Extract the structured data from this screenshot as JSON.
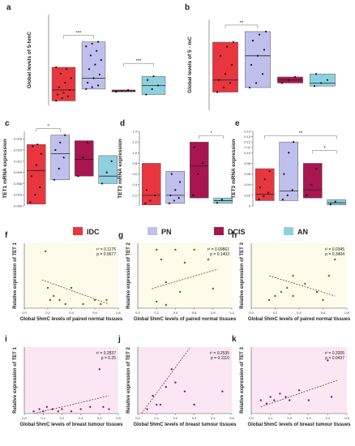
{
  "chart_data": [
    {
      "id": "a",
      "type": "box",
      "panel_letter": "a",
      "ylabel": "Global levels of 5-hmC",
      "ylim": [
        0,
        1
      ],
      "groups": [
        {
          "name": "IDC",
          "color": "#e8363f",
          "q1": 0.05,
          "median": 0.17,
          "q3": 0.42,
          "points": [
            0.05,
            0.08,
            0.1,
            0.12,
            0.14,
            0.17,
            0.2,
            0.25,
            0.3,
            0.35,
            0.4,
            0.42
          ]
        },
        {
          "name": "PN",
          "color": "#c0c0ee",
          "q1": 0.18,
          "median": 0.3,
          "q3": 0.7,
          "points": [
            0.18,
            0.2,
            0.22,
            0.25,
            0.3,
            0.34,
            0.4,
            0.45,
            0.5,
            0.55,
            0.6,
            0.65,
            0.68,
            0.7
          ]
        },
        {
          "name": "DCIS",
          "color": "#a8164f",
          "q1": 0.15,
          "median": 0.16,
          "q3": 0.17,
          "points": [
            0.15,
            0.16,
            0.17
          ]
        },
        {
          "name": "AN",
          "color": "#8fd0df",
          "q1": 0.12,
          "median": 0.22,
          "q3": 0.32,
          "points": [
            0.12,
            0.18,
            0.22,
            0.28,
            0.32
          ]
        }
      ],
      "brackets": [
        {
          "from": 0,
          "to": 1,
          "label": "***"
        },
        {
          "from": 2,
          "to": 3,
          "label": "***"
        }
      ]
    },
    {
      "id": "b",
      "type": "box",
      "panel_letter": "b",
      "ylabel": "Global levels of 5 - mC",
      "ylim": [
        0,
        6
      ],
      "groups": [
        {
          "name": "IDC",
          "color": "#e8363f",
          "q1": 1.2,
          "median": 2.0,
          "q3": 4.5,
          "points": [
            1.2,
            1.5,
            1.8,
            2.0,
            2.4,
            3.0,
            3.6,
            4.2,
            4.5
          ]
        },
        {
          "name": "PN",
          "color": "#c0c0ee",
          "q1": 1.5,
          "median": 3.6,
          "q3": 5.2,
          "points": [
            1.5,
            1.8,
            2.4,
            3.0,
            3.6,
            4.0,
            4.6,
            5.0,
            5.2
          ]
        },
        {
          "name": "DCIS",
          "color": "#a8164f",
          "q1": 1.8,
          "median": 2.0,
          "q3": 2.2,
          "points": [
            1.8,
            2.0,
            2.2
          ]
        },
        {
          "name": "AN",
          "color": "#8fd0df",
          "q1": 1.6,
          "median": 1.8,
          "q3": 2.4,
          "points": [
            1.6,
            1.8,
            2.0,
            2.4
          ]
        }
      ],
      "brackets": [
        {
          "from": 0,
          "to": 1,
          "label": "**"
        }
      ]
    },
    {
      "id": "c",
      "type": "box",
      "panel_letter": "c",
      "ylabel": "TET1 mRNA expression",
      "ylim": [
        0,
        0.02
      ],
      "yticks": [
        0.0,
        0.003,
        0.006,
        0.009,
        0.012,
        0.015,
        0.018,
        0.021
      ],
      "ytick_labels": [
        "0.000",
        "0.003",
        "0.006",
        "0.009",
        "0.012",
        "0.015",
        "0.018",
        "0.021"
      ],
      "groups": [
        {
          "name": "IDC",
          "color": "#e8363f",
          "q1": 0.0005,
          "median": 0.0095,
          "q3": 0.0165,
          "points": [
            0.001,
            0.003,
            0.005,
            0.008,
            0.011,
            0.014,
            0.016,
            0.0165
          ]
        },
        {
          "name": "PN",
          "color": "#c0c0ee",
          "q1": 0.007,
          "median": 0.014,
          "q3": 0.019,
          "points": [
            0.007,
            0.01,
            0.013,
            0.015,
            0.017,
            0.019
          ]
        },
        {
          "name": "DCIS",
          "color": "#a8164f",
          "q1": 0.008,
          "median": 0.0125,
          "q3": 0.0175,
          "points": [
            0.008,
            0.013,
            0.017
          ]
        },
        {
          "name": "AN",
          "color": "#8fd0df",
          "q1": 0.006,
          "median": 0.008,
          "q3": 0.0135,
          "points": [
            0.006,
            0.009,
            0.012
          ]
        }
      ],
      "brackets": [
        {
          "from": 0,
          "to": 1,
          "label": "*"
        }
      ]
    },
    {
      "id": "d",
      "type": "box",
      "panel_letter": "d",
      "ylabel": "TET2 mRNA expression",
      "ylim": [
        0,
        1.4
      ],
      "yticks": [
        0.2,
        0.4,
        0.6,
        0.8,
        1.0,
        1.2,
        1.4
      ],
      "ytick_labels": [
        "0.2",
        "0.4",
        "0.6",
        "0.8",
        "1.0",
        "1.2",
        "1.4"
      ],
      "groups": [
        {
          "name": "IDC",
          "color": "#e8363f",
          "q1": 0.02,
          "median": 0.2,
          "q3": 0.8,
          "points": [
            0.05,
            0.1,
            0.2,
            0.3
          ]
        },
        {
          "name": "PN",
          "color": "#c0c0ee",
          "q1": 0.05,
          "median": 0.2,
          "q3": 0.65,
          "points": [
            0.05,
            0.1,
            0.15,
            0.2,
            0.3,
            0.45,
            0.6
          ]
        },
        {
          "name": "DCIS",
          "color": "#a8164f",
          "q1": 0.15,
          "median": 0.75,
          "q3": 1.2,
          "points": [
            0.2,
            0.6,
            0.8,
            1.1
          ]
        },
        {
          "name": "AN",
          "color": "#8fd0df",
          "q1": 0.05,
          "median": 0.1,
          "q3": 0.15,
          "points": [
            0.06,
            0.12
          ]
        }
      ],
      "brackets": [
        {
          "from": 2,
          "to": 3,
          "label": "*"
        }
      ]
    },
    {
      "id": "e",
      "type": "box",
      "panel_letter": "e",
      "ylabel": "TET3 mRNA expression",
      "ylim": [
        0,
        0.14
      ],
      "yticks": [
        0.0,
        0.02,
        0.04,
        0.06,
        0.08,
        0.1,
        0.11,
        0.12,
        0.13,
        0.14
      ],
      "ytick_labels": [
        "0",
        "0.02",
        "0.04",
        "0.06",
        "0.08",
        "0.10",
        "0.11",
        "0.12",
        "0.13",
        "0.14"
      ],
      "groups": [
        {
          "name": "IDC",
          "color": "#e8363f",
          "q1": 0.01,
          "median": 0.022,
          "q3": 0.07,
          "points": [
            0.012,
            0.018,
            0.025,
            0.035,
            0.05,
            0.065
          ]
        },
        {
          "name": "PN",
          "color": "#c0c0ee",
          "q1": 0.01,
          "median": 0.028,
          "q3": 0.12,
          "points": [
            0.012,
            0.02,
            0.03,
            0.06,
            0.1,
            0.12
          ]
        },
        {
          "name": "DCIS",
          "color": "#a8164f",
          "q1": 0.015,
          "median": 0.03,
          "q3": 0.08,
          "points": [
            0.02,
            0.04,
            0.07
          ]
        },
        {
          "name": "AN",
          "color": "#8fd0df",
          "q1": 0.002,
          "median": 0.006,
          "q3": 0.012,
          "points": [
            0.003,
            0.008
          ]
        }
      ],
      "brackets": [
        {
          "from": 0,
          "to": 3,
          "label": "**"
        },
        {
          "from": 2,
          "to": 3,
          "label": "*"
        }
      ]
    },
    {
      "id": "f",
      "type": "scatter",
      "panel_letter": "f",
      "xlabel": "Global 5hmC levels of paired normal tissues",
      "ylabel": "Relative expression of TET 1",
      "bg": "#fdfbe9",
      "xlim": [
        0,
        0.8
      ],
      "ylim": [
        0,
        0.16
      ],
      "xticks": [
        0.0,
        0.2,
        0.4,
        0.6,
        0.8
      ],
      "xtick_labels": [
        "0.0",
        "0.2",
        "0.4",
        "0.6",
        "0.8"
      ],
      "points": [
        [
          0.18,
          0.14
        ],
        [
          0.2,
          0.05
        ],
        [
          0.22,
          0.02
        ],
        [
          0.25,
          0.03
        ],
        [
          0.3,
          0.02
        ],
        [
          0.35,
          0.01
        ],
        [
          0.4,
          0.05
        ],
        [
          0.5,
          0.01
        ],
        [
          0.6,
          0.02
        ],
        [
          0.65,
          0.01
        ],
        [
          0.7,
          0.02
        ]
      ],
      "trend": [
        [
          0.15,
          0.07
        ],
        [
          0.72,
          0.01
        ]
      ],
      "stat_r2": "r² = 0.1176",
      "stat_p": "p = 0.9677"
    },
    {
      "id": "g",
      "type": "scatter",
      "panel_letter": "g",
      "xlabel": "Global 5hmC levels of paired normal tissues",
      "ylabel": "Relative expression of TET 2",
      "bg": "#fdfbe9",
      "xlim": [
        0,
        1
      ],
      "ylim": [
        0,
        0.2
      ],
      "xticks": [
        0.0,
        0.2,
        0.4,
        0.6,
        0.8,
        1.0
      ],
      "xtick_labels": [
        "0.0",
        "0.2",
        "0.4",
        "0.6",
        "0.8",
        "1.0"
      ],
      "points": [
        [
          0.2,
          0.18
        ],
        [
          0.25,
          0.15
        ],
        [
          0.3,
          0.08
        ],
        [
          0.4,
          0.18
        ],
        [
          0.5,
          0.14
        ],
        [
          0.6,
          0.18
        ],
        [
          0.75,
          0.15
        ],
        [
          0.2,
          0.02
        ],
        [
          0.3,
          0.01
        ],
        [
          0.45,
          0.05
        ],
        [
          0.8,
          0.06
        ]
      ],
      "trend": [
        [
          0.15,
          0.06
        ],
        [
          0.85,
          0.12
        ]
      ],
      "stat_r2": "r² = 0.09861",
      "stat_p": "p = 0.1402"
    },
    {
      "id": "h",
      "type": "scatter",
      "panel_letter": "h",
      "xlabel": "Global 5hmC levels of paired normal tissues",
      "ylabel": "Relative expression of TET 3",
      "bg": "#fdfbe9",
      "xlim": [
        0,
        0.8
      ],
      "ylim": [
        0,
        0.16
      ],
      "xticks": [
        0.0,
        0.2,
        0.4,
        0.6,
        0.8
      ],
      "xtick_labels": [
        "0.0",
        "0.2",
        "0.4",
        "0.6",
        "0.8"
      ],
      "points": [
        [
          0.15,
          0.02
        ],
        [
          0.2,
          0.03
        ],
        [
          0.25,
          0.04
        ],
        [
          0.3,
          0.05
        ],
        [
          0.35,
          0.03
        ],
        [
          0.45,
          0.06
        ],
        [
          0.55,
          0.04
        ],
        [
          0.6,
          0.02
        ],
        [
          0.65,
          0.08
        ],
        [
          0.7,
          0.12
        ],
        [
          0.35,
          0.08
        ]
      ],
      "trend": [
        [
          0.15,
          0.08
        ],
        [
          0.7,
          0.03
        ]
      ],
      "stat_r2": "r² = 0.0345",
      "stat_p": "p = 0.3404"
    },
    {
      "id": "i",
      "type": "scatter",
      "panel_letter": "i",
      "xlabel": "Global 5hmC levels of breast tumour tissues",
      "ylabel": "Relative expression of TET 1",
      "bg": "#fbe6f3",
      "xlim": [
        0,
        0.5
      ],
      "ylim": [
        0,
        0.3
      ],
      "xticks": [
        0.0,
        0.1,
        0.2,
        0.3,
        0.4,
        0.5
      ],
      "xtick_labels": [
        "0.0",
        "0.1",
        "0.2",
        "0.3",
        "0.4",
        "0.5"
      ],
      "points": [
        [
          0.05,
          0.01
        ],
        [
          0.08,
          0.02
        ],
        [
          0.1,
          0.01
        ],
        [
          0.12,
          0.03
        ],
        [
          0.15,
          0.02
        ],
        [
          0.18,
          0.01
        ],
        [
          0.2,
          0.02
        ],
        [
          0.25,
          0.01
        ],
        [
          0.3,
          0.02
        ],
        [
          0.35,
          0.03
        ],
        [
          0.4,
          0.2
        ],
        [
          0.42,
          0.03
        ],
        [
          0.45,
          0.02
        ]
      ],
      "trend": [
        [
          0.05,
          0.0
        ],
        [
          0.45,
          0.08
        ]
      ],
      "stat_r2": "r² = 0.2837",
      "stat_p": "p = 0.25"
    },
    {
      "id": "j",
      "type": "scatter",
      "panel_letter": "j",
      "xlabel": "Global 5hmC levels of breast tumour tissues",
      "ylabel": "Relative expression of TET 2",
      "bg": "#fbe6f3",
      "xlim": [
        0,
        0.5
      ],
      "ylim": [
        0,
        0.15
      ],
      "xticks": [
        0.0,
        0.1,
        0.2,
        0.3,
        0.4,
        0.5
      ],
      "xtick_labels": [
        "0.0",
        "0.1",
        "0.2",
        "0.3",
        "0.4",
        "0.5"
      ],
      "points": [
        [
          0.05,
          0.01
        ],
        [
          0.08,
          0.04
        ],
        [
          0.1,
          0.02
        ],
        [
          0.12,
          0.02
        ],
        [
          0.15,
          0.06
        ],
        [
          0.18,
          0.1
        ],
        [
          0.2,
          0.07
        ],
        [
          0.25,
          0.05
        ],
        [
          0.3,
          0.02
        ],
        [
          0.45,
          0.05
        ]
      ],
      "trend": [
        [
          0.02,
          0.0
        ],
        [
          0.28,
          0.15
        ]
      ],
      "stat_r2": "r² = 0.2535",
      "stat_p": "p = 0.1110"
    },
    {
      "id": "k",
      "type": "scatter",
      "panel_letter": "k",
      "xlabel": "Global 5hmC levels of breast tumour tissues",
      "ylabel": "Relative expression of TET 3",
      "bg": "#fbe6f3",
      "xlim": [
        0,
        0.5
      ],
      "ylim": [
        0,
        0.2
      ],
      "xticks": [
        0.0,
        0.1,
        0.2,
        0.3,
        0.4,
        0.5
      ],
      "xtick_labels": [
        "0.0",
        "0.1",
        "0.2",
        "0.3",
        "0.4",
        "0.5"
      ],
      "points": [
        [
          0.05,
          0.04
        ],
        [
          0.08,
          0.03
        ],
        [
          0.1,
          0.05
        ],
        [
          0.12,
          0.04
        ],
        [
          0.15,
          0.06
        ],
        [
          0.18,
          0.05
        ],
        [
          0.2,
          0.04
        ],
        [
          0.25,
          0.07
        ],
        [
          0.3,
          0.04
        ],
        [
          0.4,
          0.16
        ],
        [
          0.42,
          0.05
        ]
      ],
      "trend": [
        [
          0.05,
          0.02
        ],
        [
          0.45,
          0.1
        ]
      ],
      "stat_r2": "r² = 0.3205",
      "stat_p": "p = 0.0437"
    }
  ],
  "legend": [
    {
      "label": "IDC",
      "color": "#e8363f"
    },
    {
      "label": "PN",
      "color": "#c0c0ee"
    },
    {
      "label": "DCIS",
      "color": "#a8164f"
    },
    {
      "label": "AN",
      "color": "#8fd0df"
    }
  ]
}
